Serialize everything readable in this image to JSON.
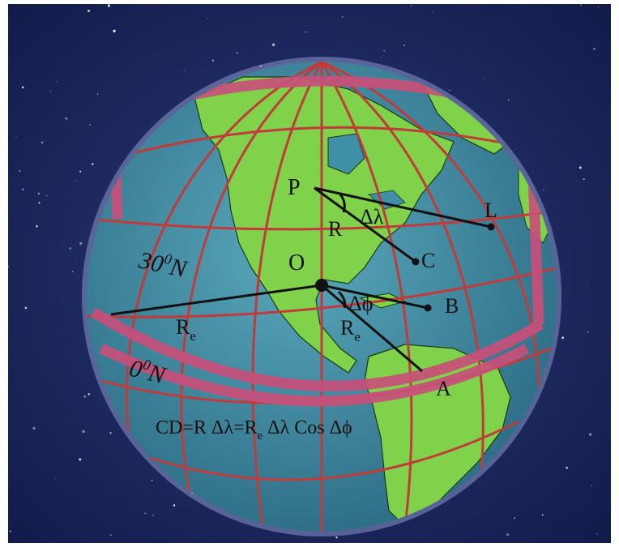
{
  "colors": {
    "space": "#1e2a63",
    "ocean": "#3f8fa6",
    "land": "#7fd24a",
    "grid": "#c23a3a",
    "band": "#c8507a",
    "line": "#111111"
  },
  "labels": {
    "p": "P",
    "o": "O",
    "l": "L",
    "c": "C",
    "b": "B",
    "a": "A",
    "r": "R",
    "delta_lambda": "Δλ",
    "delta_phi": "Δϕ",
    "re_left": "R",
    "re_left_sub": "e",
    "re_center": "R",
    "re_center_sub": "e",
    "lat30": "30",
    "lat30_sup": "0",
    "lat30_suffix": "N",
    "lat0": "0",
    "lat0_sup": "0",
    "lat0_suffix": "N",
    "formula_part1": "CD=R Δλ=R",
    "formula_sub": "e",
    "formula_part2": " Δλ Cos Δϕ"
  },
  "icons": {
    "globe": "earth-globe",
    "background": "starfield"
  }
}
